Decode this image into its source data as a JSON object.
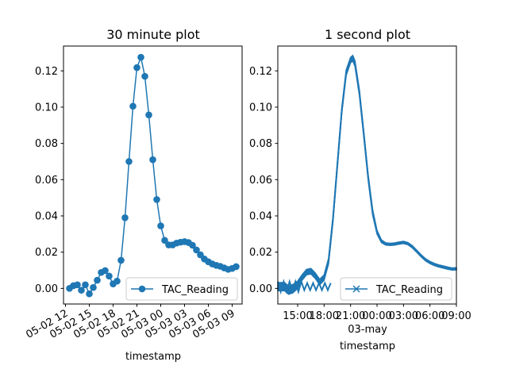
{
  "figure": {
    "background": "#ffffff",
    "line_color": "#1f77b4"
  },
  "chart_data": [
    {
      "type": "line",
      "title": "30 minute plot",
      "xlabel": "timestamp",
      "ylabel": "",
      "marker": "circle",
      "legend": {
        "label": "TAC_Reading",
        "position": "lower-right"
      },
      "x_unit": "datetime",
      "xlim": [
        "2023-05-02T11:45",
        "2023-05-03T10:15"
      ],
      "ylim": [
        -0.0086,
        0.1337
      ],
      "x_ticks": [
        "2023-05-02T12:00",
        "2023-05-02T15:00",
        "2023-05-02T18:00",
        "2023-05-02T21:00",
        "2023-05-03T00:00",
        "2023-05-03T03:00",
        "2023-05-03T06:00",
        "2023-05-03T09:00"
      ],
      "x_tick_labels": [
        "05-02 12",
        "05-02 15",
        "05-02 18",
        "05-02 21",
        "05-03 00",
        "05-03 03",
        "05-03 06",
        "05-03 09"
      ],
      "y_ticks": [
        0.0,
        0.02,
        0.04,
        0.06,
        0.08,
        0.1,
        0.12
      ],
      "y_tick_labels": [
        "0.00",
        "0.02",
        "0.04",
        "0.06",
        "0.08",
        "0.10",
        "0.12"
      ],
      "series": [
        {
          "name": "TAC_Reading",
          "x": [
            "2023-05-02T12:30",
            "2023-05-02T13:00",
            "2023-05-02T13:30",
            "2023-05-02T14:00",
            "2023-05-02T14:30",
            "2023-05-02T15:00",
            "2023-05-02T15:30",
            "2023-05-02T16:00",
            "2023-05-02T16:30",
            "2023-05-02T17:00",
            "2023-05-02T17:30",
            "2023-05-02T18:00",
            "2023-05-02T18:30",
            "2023-05-02T19:00",
            "2023-05-02T19:30",
            "2023-05-02T20:00",
            "2023-05-02T20:30",
            "2023-05-02T21:00",
            "2023-05-02T21:30",
            "2023-05-02T22:00",
            "2023-05-02T22:30",
            "2023-05-02T23:00",
            "2023-05-02T23:30",
            "2023-05-03T00:00",
            "2023-05-03T00:30",
            "2023-05-03T01:00",
            "2023-05-03T01:30",
            "2023-05-03T02:00",
            "2023-05-03T02:30",
            "2023-05-03T03:00",
            "2023-05-03T03:30",
            "2023-05-03T04:00",
            "2023-05-03T04:30",
            "2023-05-03T05:00",
            "2023-05-03T05:30",
            "2023-05-03T06:00",
            "2023-05-03T06:30",
            "2023-05-03T07:00",
            "2023-05-03T07:30",
            "2023-05-03T08:00",
            "2023-05-03T08:30",
            "2023-05-03T09:00",
            "2023-05-03T09:30"
          ],
          "y": [
            0.0,
            0.0015,
            0.002,
            -0.001,
            0.002,
            -0.003,
            0.0005,
            0.0045,
            0.0088,
            0.0098,
            0.0068,
            0.0025,
            0.004,
            0.0155,
            0.039,
            0.07,
            0.1005,
            0.1218,
            0.1275,
            0.117,
            0.0957,
            0.071,
            0.049,
            0.0345,
            0.0265,
            0.024,
            0.024,
            0.025,
            0.0255,
            0.0258,
            0.0253,
            0.0238,
            0.0212,
            0.0185,
            0.0162,
            0.0147,
            0.0135,
            0.0127,
            0.0122,
            0.0113,
            0.0105,
            0.011,
            0.012
          ]
        }
      ]
    },
    {
      "type": "line",
      "title": "1 second plot",
      "xlabel": "timestamp",
      "ylabel": "",
      "marker": "x",
      "legend": {
        "label": "TAC_Reading",
        "position": "lower-right"
      },
      "x_unit": "datetime",
      "xlim": [
        "2023-05-02T12:45",
        "2023-05-03T09:00"
      ],
      "ylim": [
        -0.0086,
        0.1337
      ],
      "x_ticks": [
        "2023-05-02T15:00",
        "2023-05-02T18:00",
        "2023-05-02T21:00",
        "2023-05-03T00:00",
        "2023-05-03T03:00",
        "2023-05-03T06:00",
        "2023-05-03T09:00"
      ],
      "x_tick_labels": [
        "15:00",
        "18:00",
        "21:00",
        "00:00",
        "03:00",
        "06:00",
        "09:00"
      ],
      "x_date_label": "03-may",
      "y_ticks": [
        0.0,
        0.02,
        0.04,
        0.06,
        0.08,
        0.1,
        0.12
      ],
      "y_tick_labels": [
        "0.00",
        "0.02",
        "0.04",
        "0.06",
        "0.08",
        "0.10",
        "0.12"
      ],
      "series": [
        {
          "name": "TAC_Reading",
          "x": [
            "2023-05-02T12:45",
            "2023-05-02T13:30",
            "2023-05-02T14:00",
            "2023-05-02T14:30",
            "2023-05-02T15:00",
            "2023-05-02T15:30",
            "2023-05-02T16:00",
            "2023-05-02T16:30",
            "2023-05-02T17:00",
            "2023-05-02T17:30",
            "2023-05-02T18:00",
            "2023-05-02T18:30",
            "2023-05-02T19:00",
            "2023-05-02T19:30",
            "2023-05-02T20:00",
            "2023-05-02T20:30",
            "2023-05-02T21:00",
            "2023-05-02T21:15",
            "2023-05-02T21:30",
            "2023-05-02T22:00",
            "2023-05-02T22:30",
            "2023-05-02T23:00",
            "2023-05-02T23:30",
            "2023-05-03T00:00",
            "2023-05-03T00:30",
            "2023-05-03T01:00",
            "2023-05-03T01:30",
            "2023-05-03T02:00",
            "2023-05-03T02:30",
            "2023-05-03T03:00",
            "2023-05-03T03:30",
            "2023-05-03T04:00",
            "2023-05-03T04:30",
            "2023-05-03T05:00",
            "2023-05-03T05:30",
            "2023-05-03T06:00",
            "2023-05-03T06:30",
            "2023-05-03T07:00",
            "2023-05-03T07:30",
            "2023-05-03T08:00",
            "2023-05-03T08:30",
            "2023-05-03T09:00"
          ],
          "y": [
            0.001,
            0.001,
            -0.001,
            0.0,
            0.002,
            0.006,
            0.009,
            0.0095,
            0.007,
            0.0035,
            0.006,
            0.015,
            0.038,
            0.068,
            0.098,
            0.119,
            0.126,
            0.127,
            0.124,
            0.108,
            0.085,
            0.061,
            0.042,
            0.031,
            0.026,
            0.0245,
            0.0243,
            0.0245,
            0.025,
            0.0254,
            0.0247,
            0.023,
            0.0205,
            0.018,
            0.0158,
            0.0143,
            0.0132,
            0.0124,
            0.0118,
            0.0112,
            0.0107,
            0.0108
          ],
          "band_width": [
            0.0045,
            0.0045,
            0.0045,
            0.0045,
            0.004,
            0.003,
            0.003,
            0.003,
            0.003,
            0.003,
            0.003,
            0.003,
            0.003,
            0.003,
            0.003,
            0.003,
            0.003,
            0.003,
            0.003,
            0.003,
            0.003,
            0.003,
            0.003,
            0.002,
            0.0015,
            0.0012,
            0.0012,
            0.0012,
            0.0012,
            0.0012,
            0.0012,
            0.0012,
            0.0012,
            0.0012,
            0.0012,
            0.0012,
            0.0012,
            0.0012,
            0.0012,
            0.0012,
            0.0012,
            0.0012
          ]
        }
      ]
    }
  ]
}
